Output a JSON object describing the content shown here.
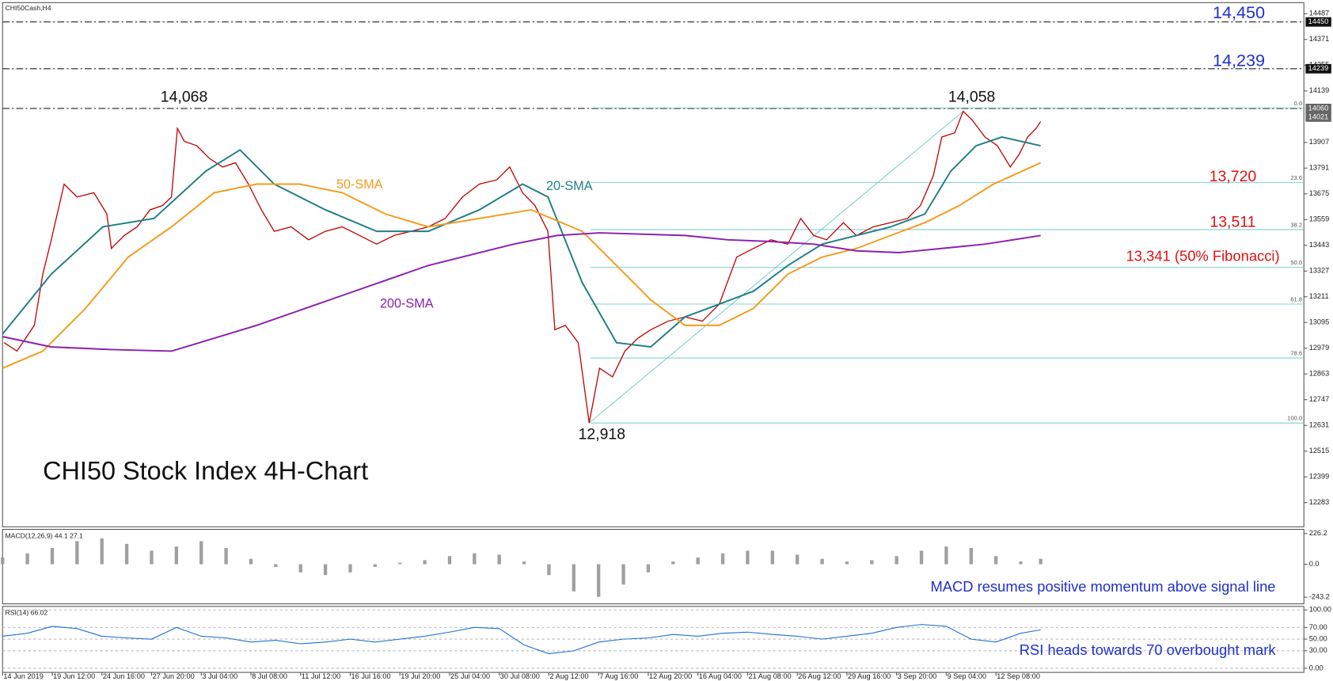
{
  "chart_data": [
    {
      "type": "line",
      "title": "CHI50 Stock Index 4H-Chart",
      "symbol_label": "CHI50Cash,H4",
      "xlim": [
        0,
        262
      ],
      "ylim": [
        12174,
        14537
      ],
      "xticks": [
        {
          "value": 0,
          "label": "14 Jun 2019"
        },
        {
          "value": 10,
          "label": "19 Jun 12:00"
        },
        {
          "value": 20,
          "label": "24 Jun 16:00"
        },
        {
          "value": 30,
          "label": "27 Jun 20:00"
        },
        {
          "value": 40,
          "label": "3 Jul 04:00"
        },
        {
          "value": 50,
          "label": "8 Jul 08:00"
        },
        {
          "value": 60,
          "label": "11 Jul 12:00"
        },
        {
          "value": 70,
          "label": "16 Jul 16:00"
        },
        {
          "value": 80,
          "label": "19 Jul 20:00"
        },
        {
          "value": 90,
          "label": "25 Jul 04:00"
        },
        {
          "value": 100,
          "label": "30 Jul 08:00"
        },
        {
          "value": 110,
          "label": "2 Aug 12:00"
        },
        {
          "value": 120,
          "label": "7 Aug 16:00"
        },
        {
          "value": 130,
          "label": "12 Aug 20:00"
        },
        {
          "value": 140,
          "label": "16 Aug 04:00"
        },
        {
          "value": 150,
          "label": "21 Aug 08:00"
        },
        {
          "value": 160,
          "label": "26 Aug 12:00"
        },
        {
          "value": 170,
          "label": "29 Aug 16:00"
        },
        {
          "value": 180,
          "label": "3 Sep 20:00"
        },
        {
          "value": 190,
          "label": "9 Sep 04:00"
        },
        {
          "value": 200,
          "label": "12 Sep 08:00"
        }
      ],
      "yticks": [
        14487,
        14371,
        14255,
        14139,
        13907,
        13791,
        13675,
        13559,
        13443,
        13327,
        13211,
        13095,
        12979,
        12863,
        12747,
        12631,
        12515,
        12399,
        12283
      ],
      "price_tags": [
        14450,
        14239,
        14060,
        14021
      ],
      "levels": [
        14450,
        14239,
        14060
      ],
      "fib_levels": [
        {
          "value": 14062,
          "label": "0.0"
        },
        {
          "value": 13726,
          "label": "23.6"
        },
        {
          "value": 13514,
          "label": "38.2"
        },
        {
          "value": 13344,
          "label": "50.0"
        },
        {
          "value": 13178,
          "label": "61.8"
        },
        {
          "value": 12935,
          "label": "78.6"
        },
        {
          "value": 12642,
          "label": "100.0"
        }
      ],
      "series": [
        {
          "name": "Price",
          "color": "#c00000",
          "x": [
            0.3,
            2.9,
            6.4,
            8.1,
            9.8,
            12.4,
            15,
            18.4,
            21,
            21.9,
            24.5,
            27.1,
            29.7,
            32.2,
            34,
            35.2,
            36.6,
            39.1,
            41.7,
            44.3,
            46.9,
            49.5,
            52.1,
            54.7,
            58.1,
            61.6,
            65,
            68.4,
            71.9,
            75.3,
            78.8,
            82.2,
            85.7,
            89.1,
            92.6,
            96,
            99.5,
            102.1,
            104.7,
            107.2,
            109.8,
            111.2,
            113.3,
            115.9,
            118.1,
            120.2,
            122.8,
            125.3,
            127.9,
            130.5,
            134,
            137.4,
            140.9,
            144.3,
            147.8,
            151.2,
            154.7,
            158.1,
            160.7,
            163.3,
            165.9,
            169.3,
            171.9,
            175.3,
            178.8,
            182.2,
            184.8,
            187.4,
            189.1,
            191.7,
            193.4,
            195.2,
            197.8,
            200.3,
            202.9,
            204.7,
            206.4,
            208.1,
            209
          ],
          "values": [
            13004,
            12966,
            13082,
            13313,
            13468,
            13719,
            13661,
            13680,
            13584,
            13429,
            13487,
            13526,
            13603,
            13622,
            13661,
            13970,
            13912,
            13892,
            13834,
            13796,
            13815,
            13719,
            13603,
            13506,
            13526,
            13468,
            13506,
            13526,
            13487,
            13448,
            13487,
            13506,
            13526,
            13564,
            13661,
            13719,
            13738,
            13796,
            13680,
            13622,
            13506,
            13062,
            13082,
            13004,
            12642,
            12889,
            12850,
            12966,
            13024,
            13062,
            13101,
            13120,
            13101,
            13178,
            13390,
            13429,
            13468,
            13448,
            13564,
            13487,
            13468,
            13545,
            13487,
            13526,
            13545,
            13564,
            13622,
            13757,
            13931,
            13950,
            14047,
            14008,
            13931,
            13892,
            13796,
            13854,
            13931,
            13970,
            14001
          ]
        },
        {
          "name": "20-SMA",
          "color": "#1e7f86",
          "x": [
            0,
            9.8,
            20.2,
            30.5,
            40.9,
            47.8,
            54.7,
            65,
            75.3,
            85.7,
            96,
            104.7,
            109.8,
            116.7,
            123.6,
            130.5,
            137.4,
            144.3,
            151.2,
            158.1,
            165,
            171.9,
            178.8,
            185.7,
            190.9,
            196,
            201.2,
            209
          ],
          "values": [
            13043,
            13313,
            13526,
            13564,
            13777,
            13873,
            13719,
            13603,
            13506,
            13506,
            13603,
            13719,
            13661,
            13275,
            13004,
            12985,
            13120,
            13178,
            13236,
            13352,
            13448,
            13487,
            13526,
            13584,
            13777,
            13892,
            13931,
            13892
          ]
        },
        {
          "name": "50-SMA",
          "color": "#f39c1e",
          "x": [
            0,
            8.1,
            16.7,
            25.3,
            34,
            42.6,
            51.2,
            59.8,
            68.4,
            77.1,
            85.7,
            96,
            106.4,
            116.7,
            123.6,
            130.5,
            137.4,
            144.3,
            151.2,
            158.1,
            165,
            171.9,
            178.8,
            185.7,
            192.6,
            199.5,
            209
          ],
          "values": [
            12889,
            12966,
            13159,
            13390,
            13526,
            13680,
            13719,
            13719,
            13680,
            13584,
            13526,
            13564,
            13603,
            13506,
            13352,
            13197,
            13082,
            13082,
            13159,
            13313,
            13390,
            13429,
            13487,
            13545,
            13622,
            13719,
            13815
          ]
        },
        {
          "name": "200-SMA",
          "color": "#8b1fb0",
          "x": [
            0,
            9.8,
            21.9,
            34,
            51.2,
            68.4,
            85.7,
            102.9,
            111.6,
            120.2,
            137.4,
            146,
            154.7,
            163.3,
            171.9,
            180.5,
            189.1,
            197.8,
            209
          ],
          "values": [
            13031,
            12985,
            12973,
            12966,
            13082,
            13217,
            13352,
            13448,
            13487,
            13499,
            13487,
            13468,
            13460,
            13448,
            13418,
            13410,
            13429,
            13448,
            13487
          ]
        }
      ],
      "annotations": [
        {
          "text": "14,450",
          "color": "#1f2fd0"
        },
        {
          "text": "14,239",
          "color": "#1f2fd0"
        },
        {
          "text": "14,068",
          "color": "#111111"
        },
        {
          "text": "14,058",
          "color": "#111111"
        },
        {
          "text": "13,720",
          "color": "#e01010"
        },
        {
          "text": "13,511",
          "color": "#e01010"
        },
        {
          "text": "13,341 (50% Fibonacci)",
          "color": "#e01010"
        },
        {
          "text": "12,918",
          "color": "#111111"
        }
      ]
    },
    {
      "type": "bar",
      "label": "MACD(12,26,9) 44.1 27.1",
      "color": "#a0a0a0",
      "xlim": [
        0,
        262
      ],
      "ylim": [
        -292,
        257
      ],
      "yticks": [
        226.2,
        {
          "value": 0,
          "label": "0.0"
        },
        -243.2
      ],
      "note": "MACD resumes positive momentum above signal line",
      "note_color": "#1f2fd0",
      "x": [
        0,
        5,
        10,
        15,
        20,
        25,
        30,
        35,
        40,
        45,
        50,
        55,
        60,
        65,
        70,
        75,
        80,
        85,
        90,
        95,
        100,
        105,
        110,
        115,
        120,
        125,
        130,
        135,
        140,
        145,
        150,
        155,
        160,
        165,
        170,
        175,
        180,
        185,
        190,
        195,
        200,
        205,
        209
      ],
      "values": [
        50,
        80,
        120,
        170,
        190,
        150,
        100,
        130,
        170,
        120,
        40,
        -20,
        -60,
        -80,
        -60,
        -20,
        10,
        30,
        60,
        80,
        70,
        20,
        -80,
        -200,
        -240,
        -150,
        -60,
        20,
        50,
        80,
        100,
        100,
        70,
        40,
        20,
        30,
        60,
        100,
        130,
        120,
        60,
        20,
        40
      ]
    },
    {
      "type": "line",
      "label": "RSI(14) 66.02",
      "color": "#1e6fd9",
      "xlim": [
        0,
        262
      ],
      "ylim": [
        -7,
        106
      ],
      "yticks": [
        {
          "value": 100,
          "label": "100.00"
        },
        {
          "value": 70,
          "label": "70.00"
        },
        {
          "value": 50,
          "label": "50.00"
        },
        {
          "value": 30,
          "label": "30.00"
        },
        {
          "value": 0,
          "label": "0.00"
        }
      ],
      "note": "RSI heads towards 70 overbought mark",
      "note_color": "#1f2fd0",
      "x": [
        0,
        5,
        10,
        15,
        20,
        25,
        30,
        35,
        40,
        45,
        50,
        55,
        60,
        65,
        70,
        75,
        80,
        85,
        90,
        95,
        100,
        105,
        110,
        115,
        120,
        125,
        130,
        135,
        140,
        145,
        150,
        155,
        160,
        165,
        170,
        175,
        180,
        185,
        190,
        195,
        200,
        205,
        209
      ],
      "values": [
        55,
        60,
        72,
        68,
        55,
        52,
        50,
        70,
        55,
        52,
        45,
        48,
        42,
        45,
        50,
        45,
        50,
        55,
        62,
        70,
        68,
        40,
        25,
        30,
        45,
        50,
        52,
        58,
        55,
        60,
        62,
        58,
        55,
        50,
        55,
        60,
        70,
        75,
        72,
        50,
        45,
        60,
        66
      ]
    }
  ]
}
